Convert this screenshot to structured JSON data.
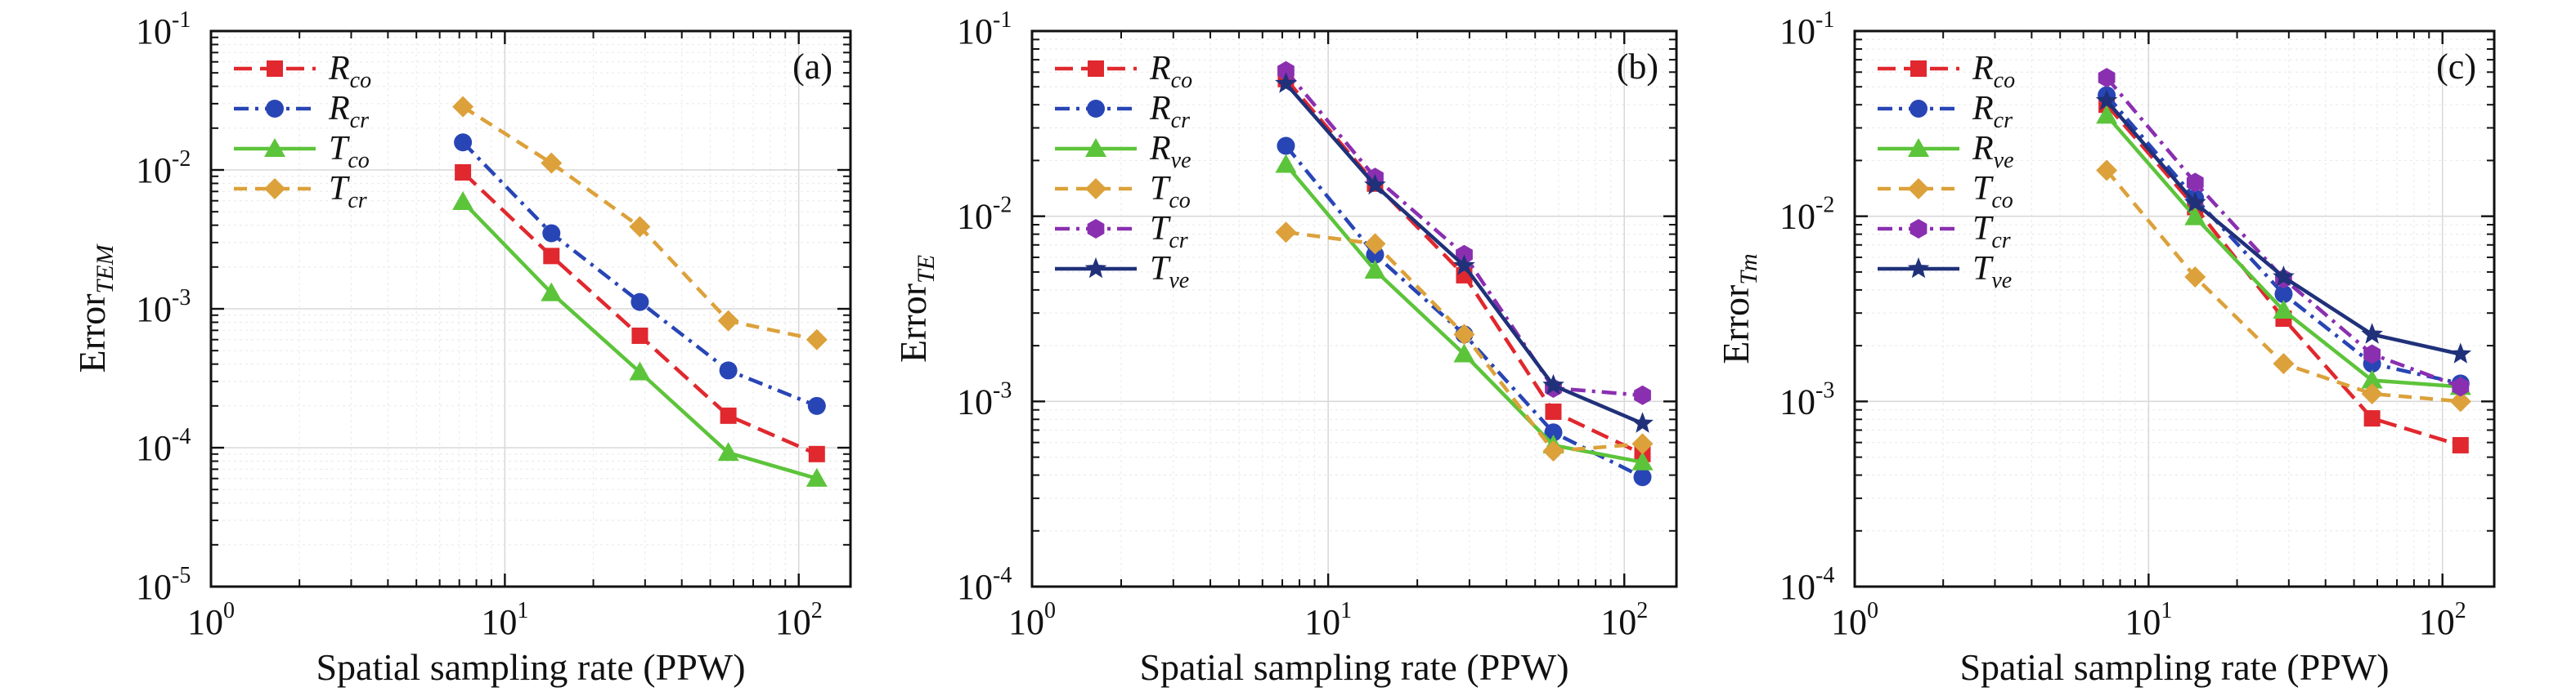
{
  "figure": {
    "xlabel": "Spatial sampling rate (PPW)",
    "panel_tags": [
      "(a)",
      "(b)",
      "(c)"
    ]
  },
  "styles": {
    "Rco": {
      "color": "#e0282e",
      "dash": "long-dash",
      "marker": "square"
    },
    "Rcr": {
      "color": "#2845b5",
      "dash": "dash-dot",
      "marker": "circle"
    },
    "Rve": {
      "color": "#5cc43a",
      "dash": "solid",
      "marker": "triangle"
    },
    "Tco": {
      "color": "#dca13a",
      "dash": "dash",
      "marker": "diamond"
    },
    "Tcr": {
      "color": "#8a2fb0",
      "dash": "dash-dot",
      "marker": "hexagon"
    },
    "Tve": {
      "color": "#20317a",
      "dash": "solid",
      "marker": "star"
    }
  },
  "chart_data": [
    {
      "type": "line",
      "tag": "(a)",
      "xlabel": "Spatial sampling rate (PPW)",
      "ylabel": {
        "main": "Error",
        "sub": "TEM"
      },
      "xscale": "log",
      "yscale": "log",
      "xlim": [
        1,
        150
      ],
      "ylim": [
        1e-05,
        0.1
      ],
      "xticks": [
        {
          "base": "10",
          "exp": "0"
        },
        {
          "base": "10",
          "exp": "1"
        },
        {
          "base": "10",
          "exp": "2"
        }
      ],
      "yticks": [
        {
          "base": "10",
          "exp": "-5"
        },
        {
          "base": "10",
          "exp": "-4"
        },
        {
          "base": "10",
          "exp": "-3"
        },
        {
          "base": "10",
          "exp": "-2"
        },
        {
          "base": "10",
          "exp": "-1"
        }
      ],
      "grid": true,
      "legend": "top-left",
      "x": [
        7.2,
        14.4,
        28.8,
        57.6,
        115.2
      ],
      "series": [
        {
          "name": "R",
          "sub": "co",
          "style": "Rco",
          "values": [
            0.0096,
            0.0024,
            0.00064,
            0.00017,
            9e-05
          ]
        },
        {
          "name": "R",
          "sub": "cr",
          "style": "Rcr",
          "values": [
            0.0158,
            0.0035,
            0.00112,
            0.00036,
            0.0002
          ]
        },
        {
          "name": "T",
          "sub": "co",
          "style": "Rve",
          "values": [
            0.0059,
            0.0013,
            0.00035,
            9.2e-05,
            6e-05
          ]
        },
        {
          "name": "T",
          "sub": "cr",
          "style": "Tco",
          "values": [
            0.0285,
            0.0112,
            0.0039,
            0.00082,
            0.0006
          ]
        }
      ]
    },
    {
      "type": "line",
      "tag": "(b)",
      "xlabel": "Spatial sampling rate (PPW)",
      "ylabel": {
        "main": "Error",
        "sub": "TE"
      },
      "xscale": "log",
      "yscale": "log",
      "xlim": [
        1,
        150
      ],
      "ylim": [
        0.0001,
        0.1
      ],
      "xticks": [
        {
          "base": "10",
          "exp": "0"
        },
        {
          "base": "10",
          "exp": "1"
        },
        {
          "base": "10",
          "exp": "2"
        }
      ],
      "yticks": [
        {
          "base": "10",
          "exp": "-4"
        },
        {
          "base": "10",
          "exp": "-3"
        },
        {
          "base": "10",
          "exp": "-2"
        },
        {
          "base": "10",
          "exp": "-1"
        }
      ],
      "grid": true,
      "legend": "top-left",
      "x": [
        7.2,
        14.4,
        28.8,
        57.6,
        115.2
      ],
      "series": [
        {
          "name": "R",
          "sub": "co",
          "style": "Rco",
          "values": [
            0.055,
            0.015,
            0.0048,
            0.00088,
            0.00052
          ]
        },
        {
          "name": "R",
          "sub": "cr",
          "style": "Rcr",
          "values": [
            0.024,
            0.0062,
            0.0023,
            0.00068,
            0.00039
          ]
        },
        {
          "name": "R",
          "sub": "ve",
          "style": "Rve",
          "values": [
            0.019,
            0.0051,
            0.0018,
            0.00058,
            0.00047
          ]
        },
        {
          "name": "T",
          "sub": "co",
          "style": "Tco",
          "values": [
            0.0082,
            0.0071,
            0.0023,
            0.00054,
            0.00059
          ]
        },
        {
          "name": "T",
          "sub": "cr",
          "style": "Tcr",
          "values": [
            0.061,
            0.0162,
            0.0062,
            0.00118,
            0.00108
          ]
        },
        {
          "name": "T",
          "sub": "ve",
          "style": "Tve",
          "values": [
            0.052,
            0.0147,
            0.0054,
            0.00122,
            0.00076
          ]
        }
      ]
    },
    {
      "type": "line",
      "tag": "(c)",
      "xlabel": "Spatial sampling rate (PPW)",
      "ylabel": {
        "main": "Error",
        "sub": "Tm"
      },
      "xscale": "log",
      "yscale": "log",
      "xlim": [
        1,
        150
      ],
      "ylim": [
        0.0001,
        0.1
      ],
      "xticks": [
        {
          "base": "10",
          "exp": "0"
        },
        {
          "base": "10",
          "exp": "1"
        },
        {
          "base": "10",
          "exp": "2"
        }
      ],
      "yticks": [
        {
          "base": "10",
          "exp": "-4"
        },
        {
          "base": "10",
          "exp": "-3"
        },
        {
          "base": "10",
          "exp": "-2"
        },
        {
          "base": "10",
          "exp": "-1"
        }
      ],
      "grid": true,
      "legend": "top-left",
      "x": [
        7.2,
        14.4,
        28.8,
        57.6,
        115.2
      ],
      "series": [
        {
          "name": "R",
          "sub": "co",
          "style": "Rco",
          "values": [
            0.04,
            0.0112,
            0.0028,
            0.00081,
            0.00058
          ]
        },
        {
          "name": "R",
          "sub": "cr",
          "style": "Rcr",
          "values": [
            0.045,
            0.0125,
            0.0038,
            0.0016,
            0.00125
          ]
        },
        {
          "name": "R",
          "sub": "ve",
          "style": "Rve",
          "values": [
            0.035,
            0.0099,
            0.0031,
            0.0013,
            0.0012
          ]
        },
        {
          "name": "T",
          "sub": "co",
          "style": "Tco",
          "values": [
            0.0177,
            0.0047,
            0.0016,
            0.0011,
            0.001
          ]
        },
        {
          "name": "T",
          "sub": "cr",
          "style": "Tcr",
          "values": [
            0.056,
            0.0152,
            0.0046,
            0.0018,
            0.0012
          ]
        },
        {
          "name": "T",
          "sub": "ve",
          "style": "Tve",
          "values": [
            0.042,
            0.0118,
            0.0047,
            0.0023,
            0.0018
          ]
        }
      ]
    }
  ]
}
